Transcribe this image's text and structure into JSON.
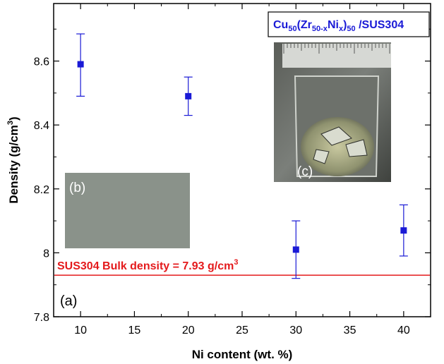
{
  "chart_data": {
    "type": "scatter",
    "title": "",
    "xlabel": "Ni content (wt. %)",
    "ylabel_parts": {
      "main": "Density (g/cm",
      "sup": "3",
      "close": ")"
    },
    "xlim": [
      7.5,
      42.5
    ],
    "ylim": [
      7.8,
      8.78
    ],
    "x_ticks": [
      10,
      15,
      20,
      25,
      30,
      35,
      40
    ],
    "x_tick_labels": [
      "10",
      "15",
      "20",
      "25",
      "30",
      "35",
      "40"
    ],
    "y_ticks": [
      7.8,
      8.0,
      8.2,
      8.4,
      8.6
    ],
    "y_tick_labels": [
      "7.8",
      "8",
      "8.2",
      "8.4",
      "8.6"
    ],
    "grid": false,
    "series": [
      {
        "color": "#1a1ad6",
        "marker": "square",
        "points": [
          {
            "x": 10,
            "y": 8.59,
            "err_low": 8.49,
            "err_high": 8.685
          },
          {
            "x": 20,
            "y": 8.49,
            "err_low": 8.43,
            "err_high": 8.55
          },
          {
            "x": 30,
            "y": 8.01,
            "err_low": 7.92,
            "err_high": 8.1
          },
          {
            "x": 40,
            "y": 8.07,
            "err_low": 7.99,
            "err_high": 8.15
          }
        ]
      }
    ],
    "reference_line": {
      "y": 7.93,
      "color": "#e41a1c",
      "label_main": "SUS304 Bulk density = 7.93 g/cm",
      "label_sup": "3"
    },
    "panel_label": "(a)",
    "inset_b": {
      "label": "(b)",
      "color": "#8a928a"
    },
    "inset_c": {
      "label": "(c)",
      "title_parts": {
        "cu": "Cu",
        "cu_sub": "50",
        "zr": "(Zr",
        "zr_sub": "50-x",
        "ni": "Ni",
        "ni_sub": "x",
        "close": ")",
        "close_sub": "50",
        "rest": " /SUS304"
      }
    }
  }
}
